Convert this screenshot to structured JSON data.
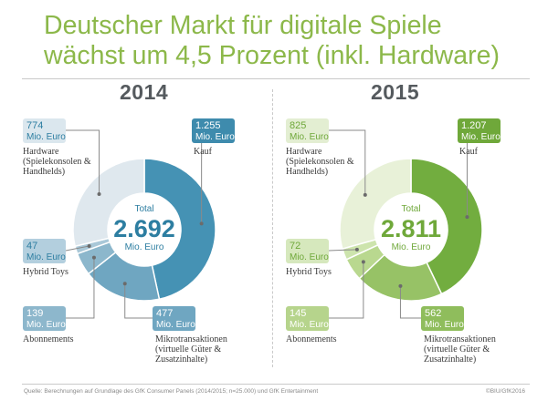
{
  "title_lines": [
    "Deutscher Markt für digitale Spiele",
    "wächst um 4,5 Prozent (inkl. Hardware)"
  ],
  "colors": {
    "title": "#8cb84a",
    "year": "#555a5e",
    "total_2014": "#2d7ea1",
    "total_2015": "#6fa83a"
  },
  "footer": {
    "source": "Quelle: Berechnungen auf Grundlage des GfK Consumer Panels (2014/2015; n=25.000) und GfK Entertainment",
    "copyright": "©BIU/GfK2016"
  },
  "chart_data": [
    {
      "type": "pie",
      "title": "2014",
      "unit": "Mio. Euro",
      "total": {
        "label": "Total",
        "value": "2.692",
        "unit": "Mio. Euro"
      },
      "segments": [
        {
          "key": "kauf",
          "name_lines": [
            "Kauf"
          ],
          "value": 1255,
          "value_label": "1.255",
          "color": "#4592b4"
        },
        {
          "key": "mikro",
          "name_lines": [
            "Mikrotransaktionen",
            "(virtuelle Güter &",
            "Zusatzinhalte)"
          ],
          "value": 477,
          "value_label": "477",
          "color": "#6fa6c1"
        },
        {
          "key": "abo",
          "name_lines": [
            "Abonnements"
          ],
          "value": 139,
          "value_label": "139",
          "color": "#8cb7cc"
        },
        {
          "key": "hybrid",
          "name_lines": [
            "Hybrid Toys"
          ],
          "value": 47,
          "value_label": "47",
          "color": "#a9c8d8"
        },
        {
          "key": "hardware",
          "name_lines": [
            "Hardware",
            "(Spielekonsolen &",
            "Handhelds)"
          ],
          "value": 774,
          "value_label": "774",
          "color": "#dfe8ee"
        }
      ]
    },
    {
      "type": "pie",
      "title": "2015",
      "unit": "Mio. Euro",
      "total": {
        "label": "Total",
        "value": "2.811",
        "unit": "Mio. Euro"
      },
      "segments": [
        {
          "key": "kauf",
          "name_lines": [
            "Kauf"
          ],
          "value": 1207,
          "value_label": "1.207",
          "color": "#72ad3f"
        },
        {
          "key": "mikro",
          "name_lines": [
            "Mikrotransaktionen",
            "(virtuelle Güter &",
            "Zusatzinhalte)"
          ],
          "value": 562,
          "value_label": "562",
          "color": "#97c266"
        },
        {
          "key": "abo",
          "name_lines": [
            "Abonnements"
          ],
          "value": 145,
          "value_label": "145",
          "color": "#b9d88f"
        },
        {
          "key": "hybrid",
          "name_lines": [
            "Hybrid Toys"
          ],
          "value": 72,
          "value_label": "72",
          "color": "#cde4ad"
        },
        {
          "key": "hardware",
          "name_lines": [
            "Hardware",
            "(Spielekonsolen &",
            "Handhelds)"
          ],
          "value": 825,
          "value_label": "825",
          "color": "#e8f1d8"
        }
      ]
    }
  ]
}
